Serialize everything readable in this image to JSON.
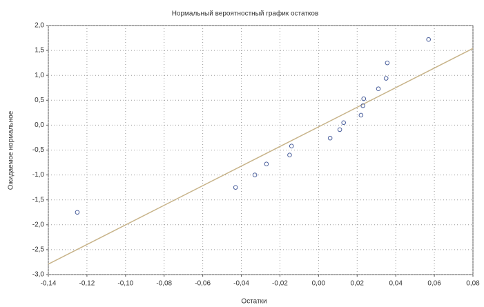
{
  "chart_data": {
    "type": "scatter",
    "title": "Нормальный вероятностный график остатков",
    "x_label": "Остатки",
    "y_label": "Ожидаемое нормальное",
    "series": [
      {
        "color": "#4a5f9c",
        "x": [
          -0.125,
          -0.043,
          -0.033,
          -0.027,
          -0.015,
          -0.014,
          0.006,
          0.011,
          0.013,
          0.022,
          0.023,
          0.0234,
          0.031,
          0.035,
          0.0356,
          0.057
        ],
        "values": [
          -1.75,
          -1.25,
          -1.0,
          -0.78,
          -0.6,
          -0.42,
          -0.26,
          -0.09,
          0.05,
          0.2,
          0.39,
          0.53,
          0.73,
          0.94,
          1.25,
          1.72
        ]
      }
    ],
    "fit_line": {
      "color": "#c8b48a",
      "x": [
        -0.14,
        0.08
      ],
      "values": [
        -2.79,
        1.54
      ]
    },
    "xlim": [
      -0.14,
      0.08
    ],
    "xticks": [
      {
        "value": -0.14,
        "label": "-0,14"
      },
      {
        "value": -0.12,
        "label": "-0,12"
      },
      {
        "value": -0.1,
        "label": "-0,10"
      },
      {
        "value": -0.08,
        "label": "-0,08"
      },
      {
        "value": -0.06,
        "label": "-0,06"
      },
      {
        "value": -0.04,
        "label": "-0,04"
      },
      {
        "value": -0.02,
        "label": "-0,02"
      },
      {
        "value": 0,
        "label": "0,00"
      },
      {
        "value": 0.02,
        "label": "0,02"
      },
      {
        "value": 0.04,
        "label": "0,04"
      },
      {
        "value": 0.06,
        "label": "0,06"
      },
      {
        "value": 0.08,
        "label": "0,08"
      }
    ],
    "ylim": [
      -3.0,
      2.0
    ],
    "yticks": [
      {
        "value": 2.0,
        "label": "2,0"
      },
      {
        "value": 1.5,
        "label": "1,5"
      },
      {
        "value": 1.0,
        "label": "1,0"
      },
      {
        "value": 0.5,
        "label": "0,5"
      },
      {
        "value": 0,
        "label": "0,0"
      },
      {
        "value": -0.5,
        "label": "-0,5"
      },
      {
        "value": -1.0,
        "label": "-1,0"
      },
      {
        "value": -1.5,
        "label": "-1,5"
      },
      {
        "value": -2.0,
        "label": "-2,0"
      },
      {
        "value": -2.5,
        "label": "-2,5"
      },
      {
        "value": -3.0,
        "label": "-3,0"
      }
    ],
    "grid": true
  }
}
